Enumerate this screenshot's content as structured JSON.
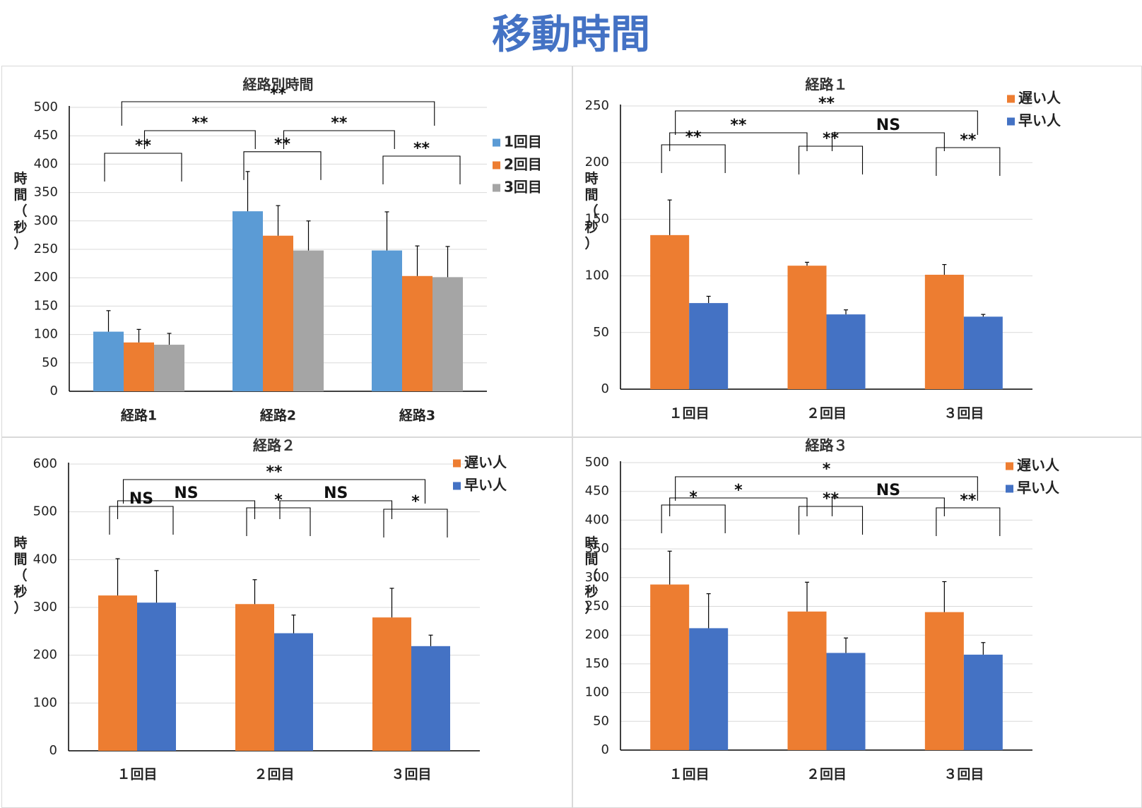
{
  "page": {
    "title": "移動時間",
    "title_color": "#4472c4"
  },
  "colors": {
    "blue_light": "#5b9bd5",
    "orange": "#ed7d31",
    "gray": "#a5a5a5",
    "blue": "#4472c4"
  },
  "chart_data": [
    {
      "type": "bar",
      "title": "経路別時間",
      "ylabel": "時間（秒）",
      "ylim": [
        0,
        500
      ],
      "yticks": [
        0,
        50,
        100,
        150,
        200,
        250,
        300,
        350,
        400,
        450,
        500
      ],
      "categories": [
        "経路1",
        "経路2",
        "経路3"
      ],
      "legend_position": "right",
      "series": [
        {
          "name": "1回目",
          "color": "#5b9bd5",
          "values": [
            105,
            317,
            248
          ],
          "errors": [
            37,
            70,
            68
          ]
        },
        {
          "name": "2回目",
          "color": "#ed7d31",
          "values": [
            86,
            274,
            203
          ],
          "errors": [
            23,
            53,
            53
          ]
        },
        {
          "name": "3回目",
          "color": "#a5a5a5",
          "values": [
            82,
            248,
            201
          ],
          "errors": [
            20,
            52,
            54
          ]
        }
      ],
      "annotations": [
        {
          "label": "**",
          "level": "group",
          "group": 0
        },
        {
          "label": "**",
          "level": "group",
          "group": 1
        },
        {
          "label": "**",
          "level": "group",
          "group": 2
        },
        {
          "label": "**",
          "level": "between",
          "from": 0,
          "to": 1
        },
        {
          "label": "**",
          "level": "between",
          "from": 1,
          "to": 2
        },
        {
          "label": "**",
          "level": "top",
          "from": 0,
          "to": 2
        }
      ]
    },
    {
      "type": "bar",
      "title": "経路１",
      "ylabel": "時間（秒）",
      "ylim": [
        0,
        250
      ],
      "yticks": [
        0,
        50,
        100,
        150,
        200,
        250
      ],
      "categories": [
        "１回目",
        "２回目",
        "３回目"
      ],
      "legend_position": "top-right",
      "series": [
        {
          "name": "遅い人",
          "color": "#ed7d31",
          "values": [
            136,
            109,
            101
          ],
          "errors": [
            31,
            3,
            9
          ]
        },
        {
          "name": "早い人",
          "color": "#4472c4",
          "values": [
            76,
            66,
            64
          ],
          "errors": [
            6,
            4,
            2
          ]
        }
      ],
      "annotations": [
        {
          "label": "**",
          "level": "pair",
          "group": 0
        },
        {
          "label": "**",
          "level": "pair",
          "group": 1
        },
        {
          "label": "**",
          "level": "pair",
          "group": 2
        },
        {
          "label": "**",
          "level": "between",
          "from": 0,
          "to": 1
        },
        {
          "label": "NS",
          "level": "between",
          "from": 1,
          "to": 2
        },
        {
          "label": "**",
          "level": "top",
          "from": 0,
          "to": 2
        }
      ]
    },
    {
      "type": "bar",
      "title": "経路２",
      "ylabel": "時間（秒）",
      "ylim": [
        0,
        600
      ],
      "yticks": [
        0,
        100,
        200,
        300,
        400,
        500,
        600
      ],
      "categories": [
        "１回目",
        "２回目",
        "３回目"
      ],
      "legend_position": "top-right",
      "series": [
        {
          "name": "遅い人",
          "color": "#ed7d31",
          "values": [
            325,
            307,
            279
          ],
          "errors": [
            77,
            51,
            61
          ]
        },
        {
          "name": "早い人",
          "color": "#4472c4",
          "values": [
            310,
            246,
            219
          ],
          "errors": [
            67,
            38,
            23
          ]
        }
      ],
      "annotations": [
        {
          "label": "NS",
          "level": "pair",
          "group": 0
        },
        {
          "label": "*",
          "level": "pair",
          "group": 1
        },
        {
          "label": "*",
          "level": "pair",
          "group": 2
        },
        {
          "label": "NS",
          "level": "between",
          "from": 0,
          "to": 1
        },
        {
          "label": "NS",
          "level": "between",
          "from": 1,
          "to": 2
        },
        {
          "label": "**",
          "level": "top",
          "from": 0,
          "to": 2
        }
      ]
    },
    {
      "type": "bar",
      "title": "経路３",
      "ylabel": "時間（秒）",
      "ylim": [
        0,
        500
      ],
      "yticks": [
        0,
        50,
        100,
        150,
        200,
        250,
        300,
        350,
        400,
        450,
        500
      ],
      "categories": [
        "１回目",
        "２回目",
        "３回目"
      ],
      "legend_position": "top-right",
      "series": [
        {
          "name": "遅い人",
          "color": "#ed7d31",
          "values": [
            288,
            241,
            240
          ],
          "errors": [
            58,
            51,
            53
          ]
        },
        {
          "name": "早い人",
          "color": "#4472c4",
          "values": [
            212,
            169,
            166
          ],
          "errors": [
            60,
            26,
            21
          ]
        }
      ],
      "annotations": [
        {
          "label": "*",
          "level": "pair",
          "group": 0
        },
        {
          "label": "**",
          "level": "pair",
          "group": 1
        },
        {
          "label": "**",
          "level": "pair",
          "group": 2
        },
        {
          "label": "*",
          "level": "between",
          "from": 0,
          "to": 1
        },
        {
          "label": "NS",
          "level": "between",
          "from": 1,
          "to": 2
        },
        {
          "label": "*",
          "level": "top",
          "from": 0,
          "to": 2
        }
      ]
    }
  ]
}
